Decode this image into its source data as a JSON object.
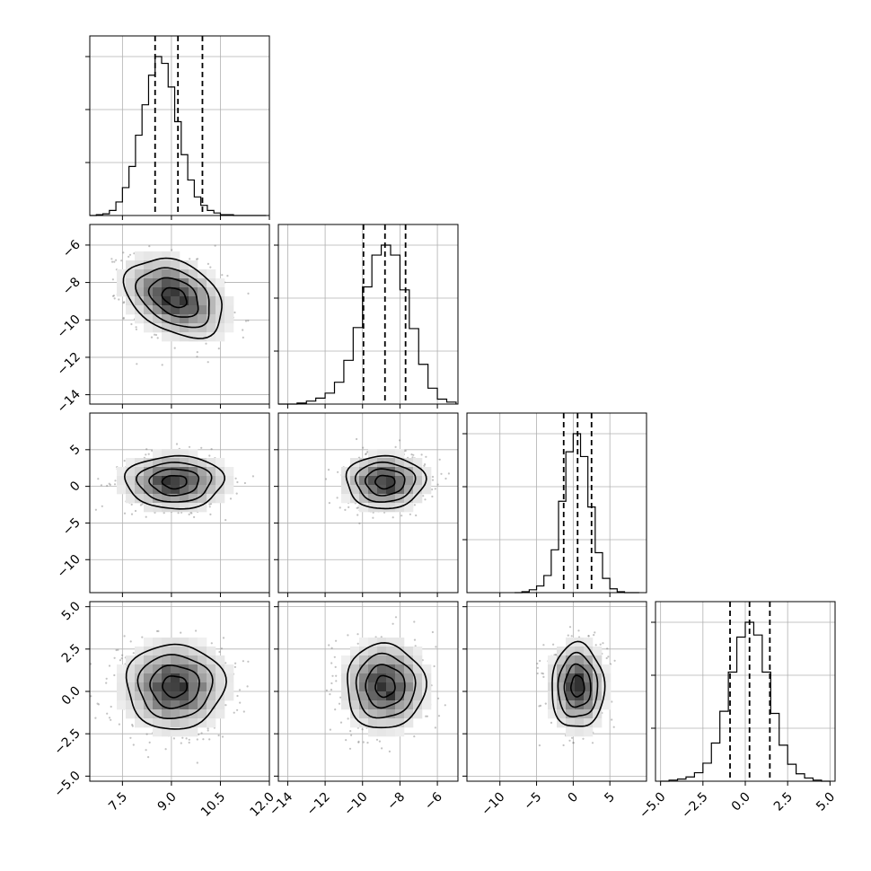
{
  "chart_data": {
    "type": "corner",
    "grid": true,
    "parameters": [
      {
        "range": [
          6.5,
          12.0
        ],
        "ticks": [
          7.5,
          9.0,
          10.5,
          12.0
        ],
        "tick_labels": [
          "7.5",
          "9.0",
          "10.5",
          "12.0"
        ],
        "quantiles": [
          8.5,
          9.2,
          9.95
        ],
        "hist_bins": [
          6.5,
          6.7,
          6.9,
          7.1,
          7.3,
          7.5,
          7.7,
          7.9,
          8.1,
          8.3,
          8.5,
          8.7,
          8.9,
          9.1,
          9.3,
          9.5,
          9.7,
          9.9,
          10.1,
          10.3,
          10.5,
          10.7,
          10.9,
          11.1,
          11.3,
          11.5,
          11.7,
          11.9
        ],
        "hist_counts": [
          0,
          1,
          2,
          6,
          16,
          33,
          58,
          95,
          131,
          166,
          188,
          180,
          152,
          111,
          72,
          42,
          22,
          12,
          6,
          3,
          1,
          1,
          0,
          0,
          0,
          0,
          0
        ],
        "mean": 9.1,
        "sd": 0.75
      },
      {
        "range": [
          -14.5,
          -4.9
        ],
        "ticks": [
          -14,
          -12,
          -10,
          -8,
          -6
        ],
        "tick_labels": [
          "−14",
          "−12",
          "−10",
          "−8",
          "−6"
        ],
        "quantiles": [
          -9.95,
          -8.8,
          -7.7
        ],
        "hist_bins": [
          -14.5,
          -14.0,
          -13.5,
          -13.0,
          -12.5,
          -12.0,
          -11.5,
          -11.0,
          -10.5,
          -10.0,
          -9.5,
          -9.0,
          -8.5,
          -8.0,
          -7.5,
          -7.0,
          -6.5,
          -6.0,
          -5.5,
          -5.0
        ],
        "hist_counts": [
          0,
          0,
          1,
          3,
          6,
          11,
          22,
          44,
          77,
          118,
          150,
          160,
          150,
          115,
          76,
          40,
          16,
          5,
          2
        ],
        "mean": -8.8,
        "sd": 1.05
      },
      {
        "range": [
          -14.5,
          10.0
        ],
        "ticks": [
          -10,
          -5,
          0,
          5
        ],
        "tick_labels": [
          "−10",
          "−5",
          "0",
          "5"
        ],
        "quantiles": [
          -1.3,
          0.6,
          2.5
        ],
        "hist_bins": [
          -8.0,
          -7.0,
          -6.0,
          -5.0,
          -4.0,
          -3.0,
          -2.0,
          -1.0,
          0.0,
          1.0,
          2.0,
          3.0,
          4.0,
          5.0,
          6.0,
          7.0,
          8.0,
          9.0
        ],
        "hist_counts": [
          0,
          1,
          3,
          7,
          18,
          45,
          96,
          148,
          167,
          143,
          90,
          42,
          15,
          4,
          1,
          0,
          0
        ],
        "mean": 0.6,
        "sd": 1.8
      },
      {
        "range": [
          -5.3,
          5.3
        ],
        "ticks": [
          -5.0,
          -2.5,
          0.0,
          2.5,
          5.0
        ],
        "tick_labels": [
          "−5.0",
          "−2.5",
          "0.0",
          "2.5",
          "5.0"
        ],
        "quantiles": [
          -0.9,
          0.25,
          1.45
        ],
        "hist_bins": [
          -5.0,
          -4.5,
          -4.0,
          -3.5,
          -3.0,
          -2.5,
          -2.0,
          -1.5,
          -1.0,
          -0.5,
          0.0,
          0.5,
          1.0,
          1.5,
          2.0,
          2.5,
          3.0,
          3.5,
          4.0,
          4.5,
          5.0
        ],
        "hist_counts": [
          0,
          1,
          2,
          4,
          8,
          17,
          36,
          66,
          103,
          136,
          150,
          138,
          103,
          64,
          34,
          16,
          7,
          3,
          1,
          0
        ],
        "mean": 0.3,
        "sd": 1.25
      }
    ],
    "correlations": [
      [
        0,
        1,
        -0.35
      ],
      [
        0,
        2,
        0.0
      ],
      [
        1,
        2,
        0.0
      ],
      [
        0,
        3,
        0.0
      ],
      [
        1,
        3,
        0.0
      ],
      [
        2,
        3,
        0.0
      ]
    ],
    "contour_levels_sigma": [
      0.5,
      1.0,
      1.5,
      2.0
    ]
  }
}
